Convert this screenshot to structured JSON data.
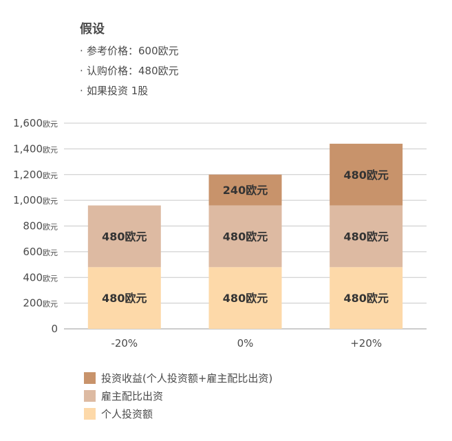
{
  "assumptions": {
    "title": "假设",
    "items": [
      "参考价格：600欧元",
      "认购价格：480欧元",
      "如果投资 1股"
    ]
  },
  "chart_data": {
    "type": "bar",
    "stacked": true,
    "categories": [
      "-20%",
      "0%",
      "+20%"
    ],
    "series": [
      {
        "name": "个人投资额",
        "values": [
          480,
          480,
          480
        ],
        "labels": [
          "480欧元",
          "480欧元",
          "480欧元"
        ],
        "color": "#FDD9A9"
      },
      {
        "name": "雇主配比出资",
        "values": [
          480,
          480,
          480
        ],
        "labels": [
          "480欧元",
          "480欧元",
          "480欧元"
        ],
        "color": "#DDBAA2"
      },
      {
        "name": "投资收益(个人投资额+雇主配比出资)",
        "values": [
          0,
          240,
          480
        ],
        "labels": [
          "",
          "240欧元",
          "480欧元"
        ],
        "color": "#C8936B"
      }
    ],
    "y_ticks": [
      0,
      200,
      400,
      600,
      800,
      1000,
      1200,
      1400,
      1600
    ],
    "y_tick_labels": [
      "0",
      "200",
      "400",
      "600",
      "800",
      "1,000",
      "1,200",
      "1,400",
      "1,600"
    ],
    "y_unit_label": "欧元",
    "ylim": [
      0,
      1600
    ],
    "grid": true
  },
  "legend": [
    {
      "label": "投资收益(个人投资额+雇主配比出资)",
      "color": "#C8936B"
    },
    {
      "label": "雇主配比出资",
      "color": "#DDBAA2"
    },
    {
      "label": "个人投资额",
      "color": "#FDD9A9"
    }
  ]
}
